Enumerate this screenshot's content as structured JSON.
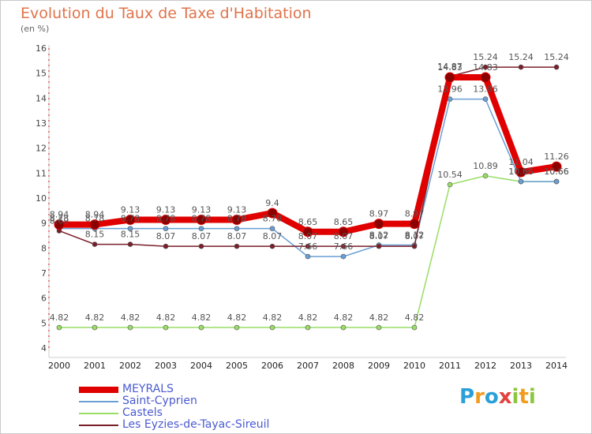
{
  "title": "Evolution du Taux de Taxe d'Habitation",
  "unit": "(en %)",
  "logo": {
    "text": "Proxiti",
    "letters": [
      "P",
      "r",
      "o",
      "x",
      "i",
      "t",
      "i"
    ],
    "colors": [
      "#2a9fd8",
      "#f29c1f",
      "#2a9fd8",
      "#e2423d",
      "#8cc63f",
      "#f29c1f",
      "#8cc63f"
    ]
  },
  "chart_data": {
    "type": "line",
    "title": "Evolution du Taux de Taxe d'Habitation",
    "ylabel": "(en %)",
    "xlabel": "",
    "ylim": [
      4,
      16
    ],
    "yticks": [
      4,
      5,
      6,
      7,
      8,
      9,
      10,
      11,
      12,
      13,
      14,
      15,
      16
    ],
    "grid": false,
    "legend_position": "bottom-left",
    "x": [
      "2000",
      "2001",
      "2002",
      "2003",
      "2004",
      "2005",
      "2006",
      "2007",
      "2008",
      "2009",
      "2010",
      "2011",
      "2012",
      "2013",
      "2014"
    ],
    "series": [
      {
        "name": "MEYRALS",
        "color": "#e00000",
        "values": [
          8.94,
          8.94,
          9.13,
          9.13,
          9.13,
          9.13,
          9.4,
          8.65,
          8.65,
          8.97,
          8.97,
          14.83,
          14.83,
          11.04,
          11.26
        ]
      },
      {
        "name": "Saint-Cyprien",
        "color": "#6a9fd4",
        "values": [
          8.78,
          8.78,
          8.78,
          8.78,
          8.78,
          8.78,
          8.78,
          7.66,
          7.66,
          8.12,
          8.12,
          13.96,
          13.96,
          10.66,
          10.66
        ]
      },
      {
        "name": "Castels",
        "color": "#99dd66",
        "values": [
          4.82,
          4.82,
          4.82,
          4.82,
          4.82,
          4.82,
          4.82,
          4.82,
          4.82,
          4.82,
          4.82,
          10.54,
          10.89,
          10.66,
          10.66
        ]
      },
      {
        "name": "Les Eyzies-de-Tayac-Sireuil",
        "color": "#7a1f2a",
        "values": [
          8.69,
          8.15,
          8.15,
          8.07,
          8.07,
          8.07,
          8.07,
          8.07,
          8.07,
          8.07,
          8.07,
          14.87,
          15.24,
          15.24,
          15.24
        ]
      }
    ]
  }
}
